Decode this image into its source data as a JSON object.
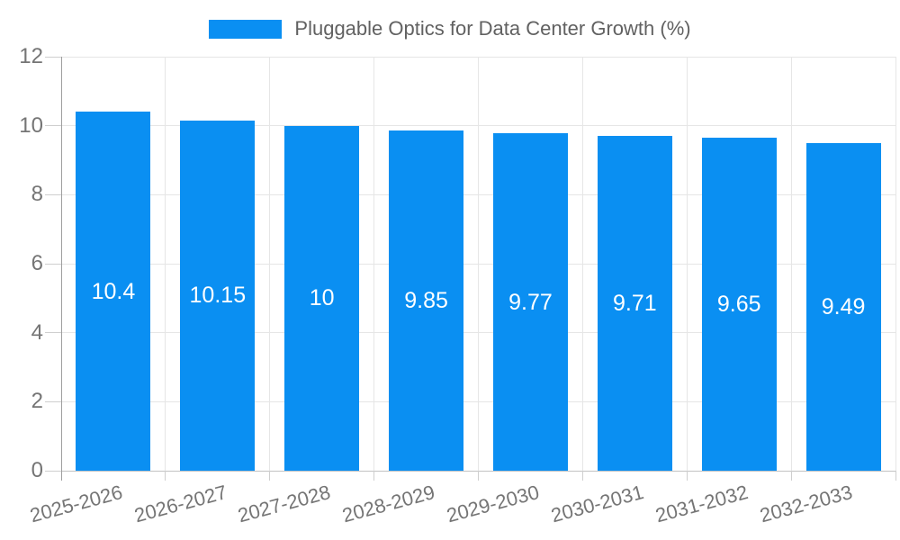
{
  "chart_data": {
    "type": "bar",
    "title": "Pluggable Optics for Data Center Growth (%)",
    "categories": [
      "2025-2026",
      "2026-2027",
      "2027-2028",
      "2028-2029",
      "2029-2030",
      "2030-2031",
      "2031-2032",
      "2032-2033"
    ],
    "values": [
      10.4,
      10.15,
      10,
      9.85,
      9.77,
      9.71,
      9.65,
      9.49
    ],
    "value_labels": [
      "10.4",
      "10.15",
      "10",
      "9.85",
      "9.77",
      "9.71",
      "9.65",
      "9.49"
    ],
    "series_name": "Pluggable Optics for Data Center Growth (%)",
    "xlabel": "",
    "ylabel": "",
    "ylim": [
      0,
      12
    ],
    "yticks": [
      "0",
      "2",
      "4",
      "6",
      "8",
      "10",
      "12"
    ],
    "grid": true,
    "legend_position": "top",
    "colors": {
      "bar": "#0a8ff2",
      "value_label": "#ffffff",
      "axis_text": "#757575",
      "legend_text": "#616161",
      "gridline": "#e6e6e6",
      "baseline": "#c2c2c2",
      "axis_line": "#9e9e9e",
      "tick": "#cfcfcf",
      "background": "#ffffff"
    }
  }
}
